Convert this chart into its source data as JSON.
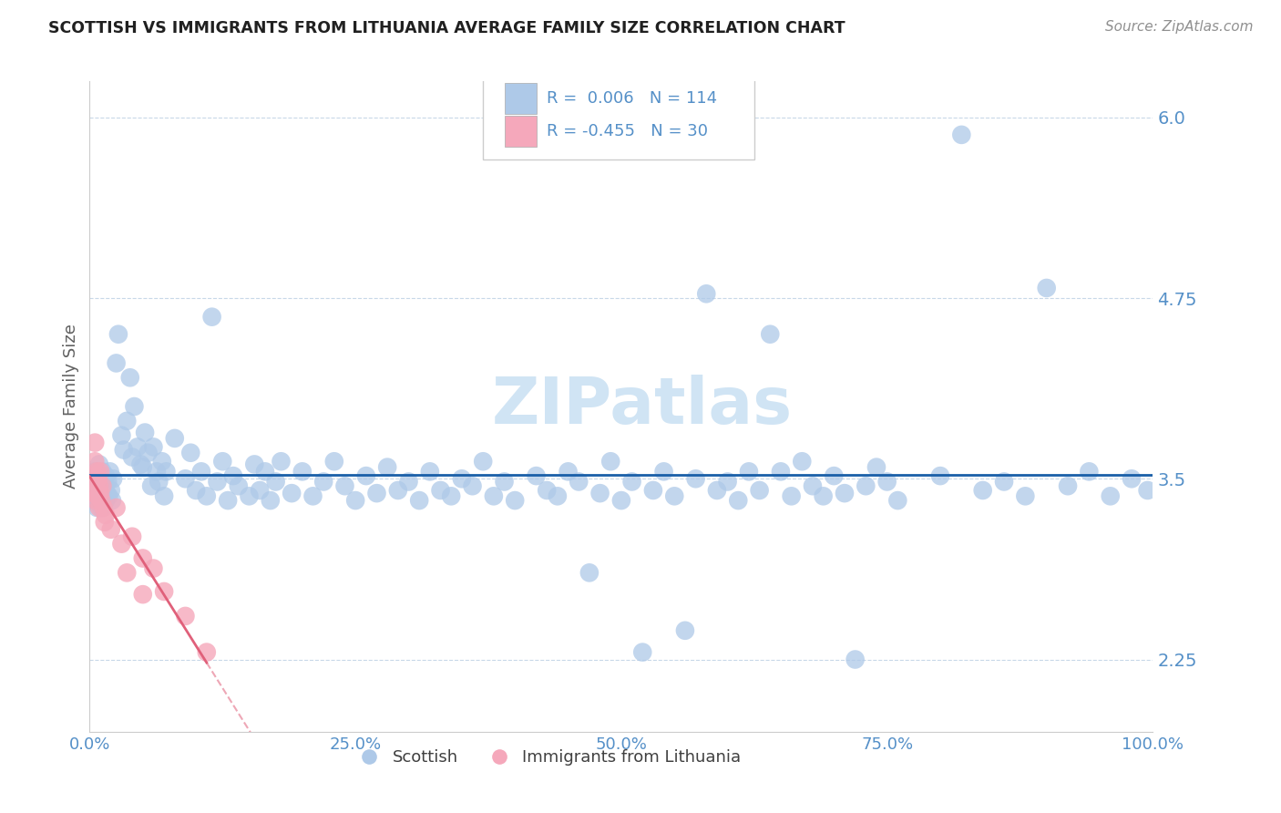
{
  "title": "SCOTTISH VS IMMIGRANTS FROM LITHUANIA AVERAGE FAMILY SIZE CORRELATION CHART",
  "source": "Source: ZipAtlas.com",
  "ylabel": "Average Family Size",
  "x_min": 0.0,
  "x_max": 1.0,
  "y_min": 1.75,
  "y_max": 6.25,
  "yticks": [
    2.25,
    3.5,
    4.75,
    6.0
  ],
  "xticks": [
    0.0,
    0.25,
    0.5,
    0.75,
    1.0
  ],
  "xticklabels": [
    "0.0%",
    "25.0%",
    "50.0%",
    "75.0%",
    "100.0%"
  ],
  "R_scottish": "0.006",
  "N_scottish": "114",
  "R_lithuania": "-0.455",
  "N_lithuania": "30",
  "scottish_color": "#aec9e8",
  "lithuania_color": "#f5a8bb",
  "scottish_line_color": "#1a5fa8",
  "lithuania_line_color": "#e0607a",
  "background_color": "#ffffff",
  "grid_color": "#c8d8e8",
  "tick_label_color": "#5590c8",
  "legend_text_color": "#5590c8",
  "axis_label_color": "#606060",
  "watermark_color": "#d0e4f4",
  "title_color": "#202020"
}
